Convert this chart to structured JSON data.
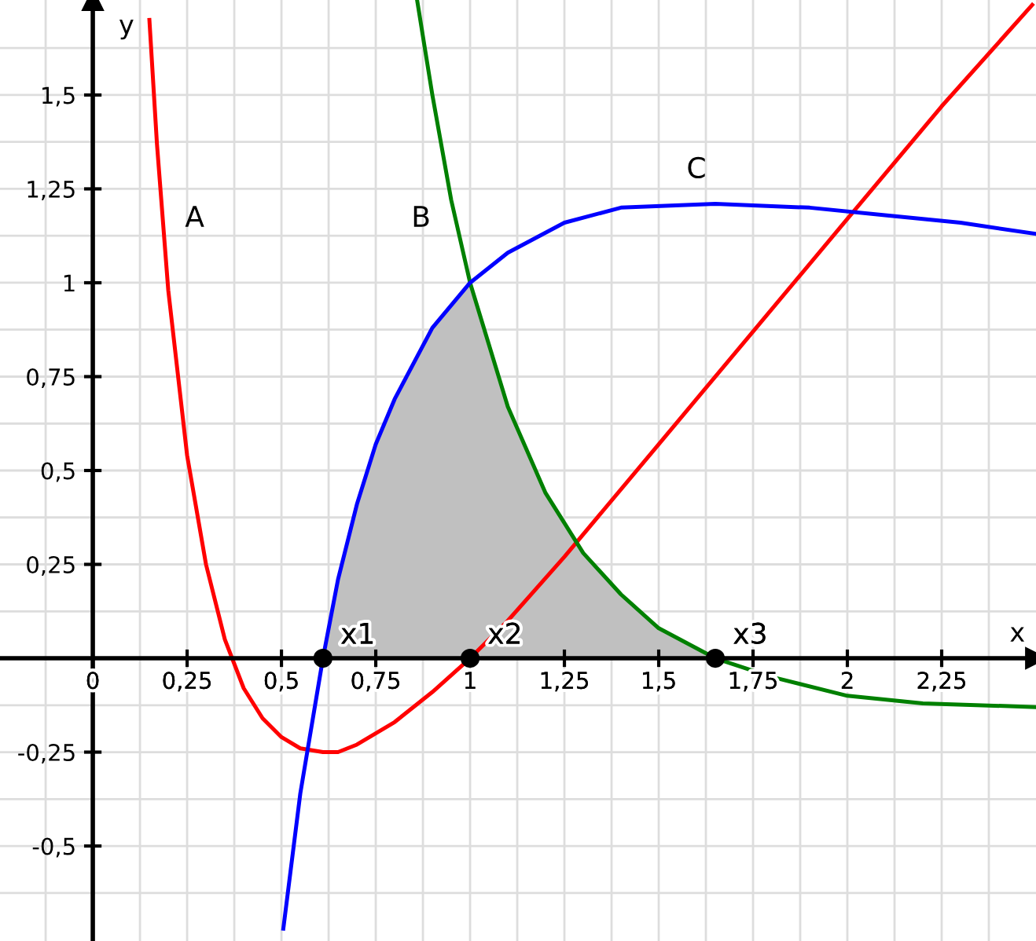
{
  "chart_data": {
    "type": "line",
    "xlabel": "x",
    "ylabel": "y",
    "xlim": [
      -0.246,
      2.5
    ],
    "ylim": [
      -0.753,
      1.753
    ],
    "xticks": [
      {
        "value": -0.125,
        "label": null
      },
      {
        "value": 0,
        "label": "0"
      },
      {
        "value": 0.125,
        "label": null
      },
      {
        "value": 0.25,
        "label": "0,25"
      },
      {
        "value": 0.375,
        "label": null
      },
      {
        "value": 0.5,
        "label": "0,5"
      },
      {
        "value": 0.625,
        "label": null
      },
      {
        "value": 0.75,
        "label": "0,75"
      },
      {
        "value": 0.875,
        "label": null
      },
      1,
      {
        "value": 1.125,
        "label": null
      },
      {
        "value": 1.25,
        "label": "1,25"
      },
      {
        "value": 1.375,
        "label": null
      },
      {
        "value": 1.5,
        "label": "1,5"
      },
      {
        "value": 1.625,
        "label": null
      },
      {
        "value": 1.75,
        "label": "1,75"
      },
      {
        "value": 1.875,
        "label": null
      },
      2,
      {
        "value": 2.125,
        "label": null
      },
      {
        "value": 2.25,
        "label": "2,25"
      },
      {
        "value": 2.375,
        "label": null
      }
    ],
    "yticks": [
      {
        "value": -0.625,
        "label": null
      },
      {
        "value": -0.5,
        "label": "-0,5"
      },
      {
        "value": -0.375,
        "label": null
      },
      {
        "value": -0.25,
        "label": "-0,25"
      },
      {
        "value": -0.125,
        "label": null
      },
      {
        "value": 0.125,
        "label": null
      },
      {
        "value": 0.25,
        "label": "0,25"
      },
      {
        "value": 0.375,
        "label": null
      },
      {
        "value": 0.5,
        "label": "0,5"
      },
      {
        "value": 0.625,
        "label": null
      },
      {
        "value": 0.75,
        "label": "0,75"
      },
      {
        "value": 0.875,
        "label": null
      },
      1,
      {
        "value": 1.125,
        "label": null
      },
      {
        "value": 1.25,
        "label": "1,25"
      },
      {
        "value": 1.375,
        "label": null
      },
      {
        "value": 1.5,
        "label": "1,5"
      },
      {
        "value": 1.625,
        "label": null
      }
    ],
    "grid": true,
    "series": [
      {
        "type": "area",
        "color": "#c0c0c0",
        "x": [
          0.61,
          0.65,
          0.7,
          0.75,
          0.8,
          0.9,
          1,
          1.1,
          1.2,
          1.3,
          1.4,
          1.5,
          1.65
        ],
        "values": [
          0,
          0.21,
          0.41,
          0.57,
          0.69,
          0.88,
          1,
          0.67,
          0.44,
          0.28,
          0.17,
          0.08,
          0
        ]
      },
      {
        "name": "A",
        "color": "#ff0000",
        "x": [
          0.15,
          0.17,
          0.2,
          0.25,
          0.3,
          0.35,
          0.4,
          0.45,
          0.5,
          0.55,
          0.61,
          0.65,
          0.7,
          0.8,
          0.9,
          1,
          1.1,
          1.25,
          1.5,
          1.75,
          2,
          2.25,
          2.49
        ],
        "values": [
          1.7,
          1.37,
          0.98,
          0.54,
          0.25,
          0.05,
          -0.08,
          -0.16,
          -0.21,
          -0.24,
          -0.25,
          -0.25,
          -0.23,
          -0.17,
          -0.09,
          0,
          0.1,
          0.27,
          0.57,
          0.87,
          1.17,
          1.47,
          1.74
        ]
      },
      {
        "name": "B",
        "color": "#008000",
        "x": [
          0.86,
          0.9,
          0.95,
          1,
          1.1,
          1.2,
          1.3,
          1.4,
          1.5,
          1.65,
          1.8,
          2,
          2.2,
          2.5
        ],
        "values": [
          1.75,
          1.5,
          1.22,
          1,
          0.67,
          0.44,
          0.28,
          0.17,
          0.08,
          0,
          -0.05,
          -0.1,
          -0.12,
          -0.13
        ]
      },
      {
        "name": "C",
        "color": "#0000ff",
        "x": [
          0.505,
          0.55,
          0.61,
          0.65,
          0.7,
          0.75,
          0.8,
          0.9,
          1,
          1.1,
          1.25,
          1.4,
          1.65,
          1.9,
          2.1,
          2.3,
          2.5
        ],
        "values": [
          -0.72,
          -0.36,
          0,
          0.21,
          0.41,
          0.57,
          0.69,
          0.88,
          1,
          1.08,
          1.16,
          1.2,
          1.21,
          1.2,
          1.18,
          1.16,
          1.13
        ]
      },
      {
        "type": "scatter",
        "color": "#000000",
        "marker": "circle",
        "x": [
          0.61,
          1,
          1.65
        ],
        "values": [
          0,
          0,
          0
        ]
      }
    ],
    "annotations": [
      {
        "text": "x1",
        "x": 0.61,
        "y": 0
      },
      {
        "text": "x2",
        "x": 1,
        "y": 0
      },
      {
        "text": "x3",
        "x": 1.65,
        "y": 0
      }
    ]
  }
}
